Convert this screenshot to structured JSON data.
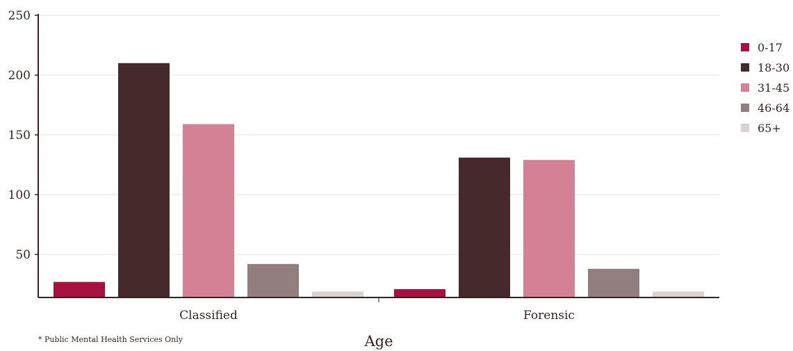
{
  "chart_data": {
    "type": "bar",
    "categories": [
      "Classified",
      "Forensic"
    ],
    "series": [
      {
        "name": "0-17",
        "color": "#a8113f",
        "values": [
          27,
          21
        ]
      },
      {
        "name": "18-30",
        "color": "#46292a",
        "values": [
          210,
          131
        ]
      },
      {
        "name": "31-45",
        "color": "#d48196",
        "values": [
          159,
          129
        ]
      },
      {
        "name": "46-64",
        "color": "#917e7e",
        "values": [
          42,
          38
        ]
      },
      {
        "name": "65+",
        "color": "#d9d3d3",
        "values": [
          19,
          19
        ]
      }
    ],
    "xlabel": "Age",
    "ylabel": "",
    "ylim": [
      14,
      250
    ],
    "yticks": [
      50,
      100,
      150,
      200,
      250
    ],
    "grid": true,
    "legend": "right",
    "footnote": "* Public Mental Health Services Only"
  }
}
